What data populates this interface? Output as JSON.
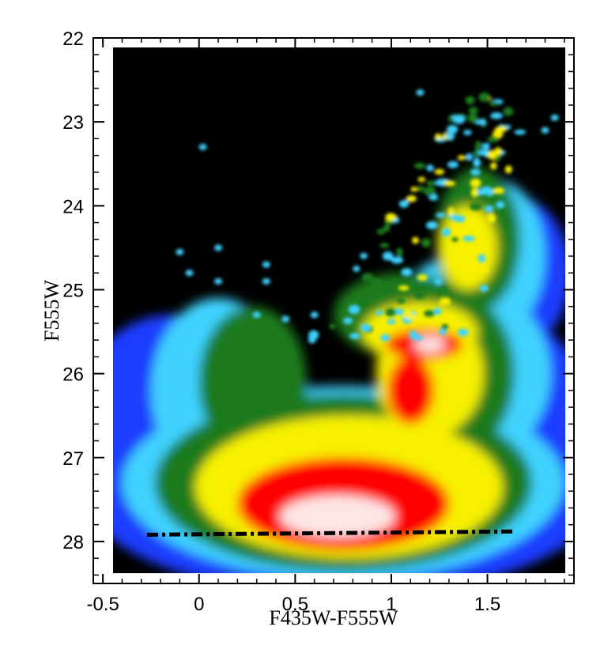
{
  "chart_data": {
    "type": "heatmap",
    "title": "",
    "xlabel": "F435W-F555W",
    "ylabel": "F555W",
    "xlim": [
      -0.55,
      1.95
    ],
    "ylim": [
      28.5,
      22
    ],
    "y_inverted": true,
    "x_ticks": [
      -0.5,
      0,
      0.5,
      1,
      1.5
    ],
    "x_tick_labels": [
      "-0.5",
      "0",
      "0.5",
      "1",
      "1.5"
    ],
    "y_ticks": [
      22,
      23,
      24,
      25,
      26,
      27,
      28
    ],
    "y_tick_labels": [
      "22",
      "23",
      "24",
      "25",
      "26",
      "27",
      "28"
    ],
    "colormap": [
      "#000000",
      "#1a3cff",
      "#3fd2ff",
      "#1e7a1e",
      "#f7f000",
      "#ff0000",
      "#ffffff"
    ],
    "density_coverage": {
      "x_range": [
        -0.5,
        1.9
      ],
      "y_range": [
        22.0,
        28.4
      ]
    },
    "density_peaks": [
      {
        "x": 0.72,
        "y": 27.7,
        "level": "max"
      },
      {
        "x": 1.2,
        "y": 25.65,
        "level": "high"
      }
    ],
    "completeness_line": {
      "style": "dash-dot",
      "color": "#000000",
      "x": [
        -0.27,
        1.65
      ],
      "y": [
        27.92,
        27.88
      ]
    }
  }
}
